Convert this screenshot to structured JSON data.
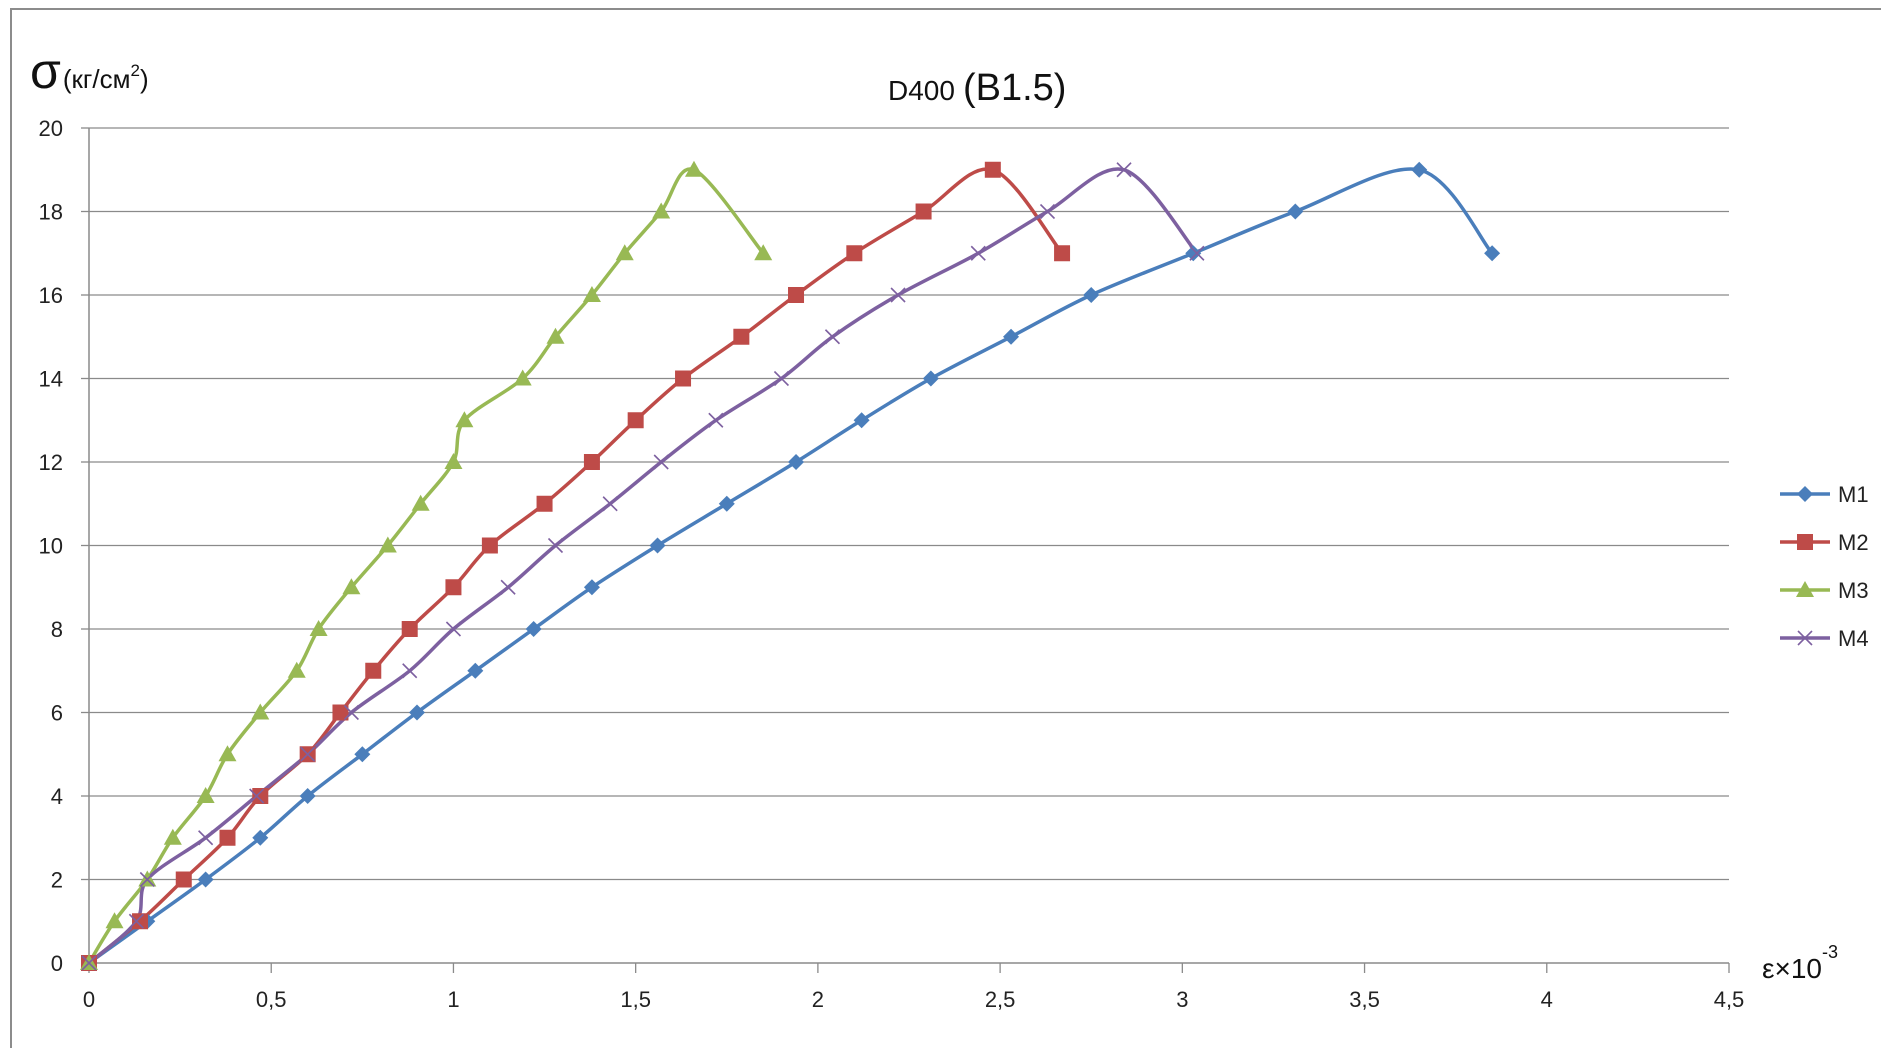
{
  "chart_data": {
    "type": "line",
    "title_main": "D400",
    "title_paren": "(B1.5)",
    "ylabel_symbol": "σ",
    "ylabel_unit": "(кг/см",
    "ylabel_sup": "2",
    "ylabel_close": ")",
    "xlabel_base": "ε×10",
    "xlabel_exp": "-3",
    "xlim": [
      0,
      4.5
    ],
    "ylim": [
      0,
      20
    ],
    "x_ticks": [
      0,
      0.5,
      1,
      1.5,
      2,
      2.5,
      3,
      3.5,
      4,
      4.5
    ],
    "x_tick_labels": [
      "0",
      "0,5",
      "1",
      "1,5",
      "2",
      "2,5",
      "3",
      "3,5",
      "4",
      "4,5"
    ],
    "y_ticks": [
      0,
      2,
      4,
      6,
      8,
      10,
      12,
      14,
      16,
      18,
      20
    ],
    "y_tick_labels": [
      "0",
      "2",
      "4",
      "6",
      "8",
      "10",
      "12",
      "14",
      "16",
      "18",
      "20"
    ],
    "grid": true,
    "legend_position": "right",
    "series": [
      {
        "name": "M1",
        "color": "#4A7EBB",
        "marker": "diamond",
        "x": [
          0,
          0.16,
          0.32,
          0.47,
          0.6,
          0.75,
          0.9,
          1.06,
          1.22,
          1.38,
          1.56,
          1.75,
          1.94,
          2.12,
          2.31,
          2.53,
          2.75,
          3.03,
          3.31,
          3.65,
          3.85
        ],
        "y": [
          0,
          1,
          2,
          3,
          4,
          5,
          6,
          7,
          8,
          9,
          10,
          11,
          12,
          13,
          14,
          15,
          16,
          17,
          18,
          19,
          17
        ]
      },
      {
        "name": "M2",
        "color": "#BE4B48",
        "marker": "square",
        "x": [
          0,
          0.14,
          0.26,
          0.38,
          0.47,
          0.6,
          0.69,
          0.78,
          0.88,
          1.0,
          1.1,
          1.25,
          1.38,
          1.5,
          1.63,
          1.79,
          1.94,
          2.1,
          2.29,
          2.48,
          2.67
        ],
        "y": [
          0,
          1,
          2,
          3,
          4,
          5,
          6,
          7,
          8,
          9,
          10,
          11,
          12,
          13,
          14,
          15,
          16,
          17,
          18,
          19,
          17
        ]
      },
      {
        "name": "M3",
        "color": "#98B954",
        "marker": "triangle",
        "x": [
          0,
          0.07,
          0.16,
          0.23,
          0.32,
          0.38,
          0.47,
          0.57,
          0.63,
          0.72,
          0.82,
          0.91,
          1.0,
          1.03,
          1.19,
          1.28,
          1.38,
          1.47,
          1.57,
          1.66,
          1.85
        ],
        "y": [
          0,
          1,
          2,
          3,
          4,
          5,
          6,
          7,
          8,
          9,
          10,
          11,
          12,
          13,
          14,
          15,
          16,
          17,
          18,
          19,
          17
        ]
      },
      {
        "name": "M4",
        "color": "#7D60A0",
        "marker": "x",
        "x": [
          0,
          0.13,
          0.16,
          0.32,
          0.46,
          0.6,
          0.72,
          0.88,
          1.0,
          1.15,
          1.28,
          1.43,
          1.57,
          1.72,
          1.9,
          2.04,
          2.22,
          2.44,
          2.63,
          2.84,
          3.04
        ],
        "y": [
          0,
          1,
          2,
          3,
          4,
          5,
          6,
          7,
          8,
          9,
          10,
          11,
          12,
          13,
          14,
          15,
          16,
          17,
          18,
          19,
          17
        ]
      }
    ]
  }
}
